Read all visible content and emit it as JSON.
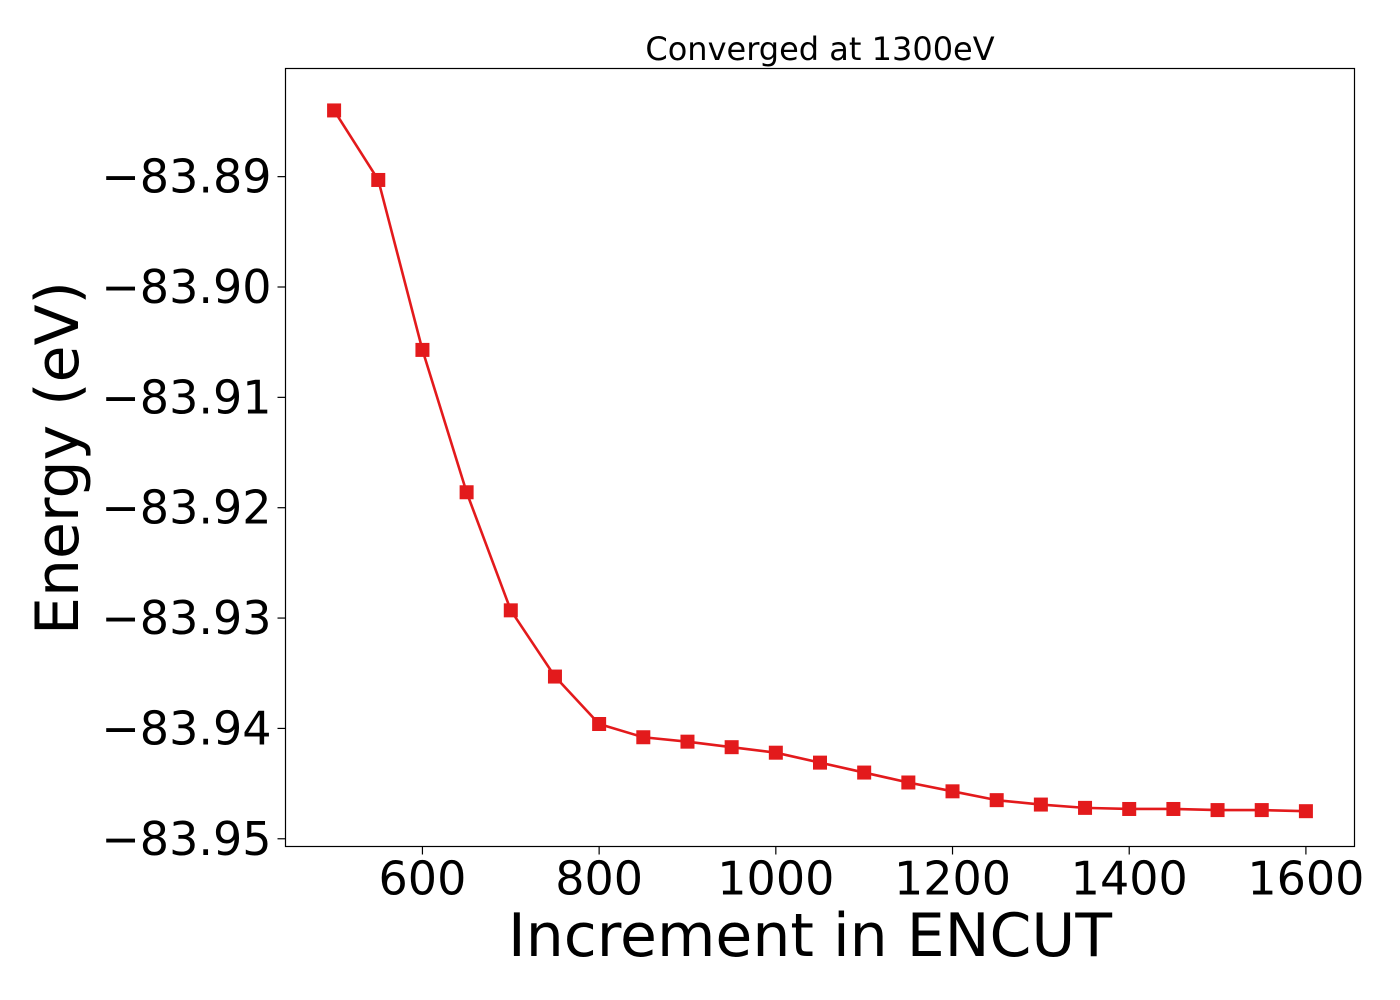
{
  "chart_data": {
    "type": "line",
    "title": "Converged at 1300eV",
    "xlabel": "Increment in ENCUT",
    "ylabel": "Energy (eV)",
    "xlim": [
      445,
      1655
    ],
    "ylim": [
      -83.9507,
      -83.8802
    ],
    "xticks": [
      600,
      800,
      1000,
      1200,
      1400,
      1600
    ],
    "xtick_labels": [
      "600",
      "800",
      "1000",
      "1200",
      "1400",
      "1600"
    ],
    "yticks": [
      -83.89,
      -83.9,
      -83.91,
      -83.92,
      -83.93,
      -83.94,
      -83.95
    ],
    "ytick_labels": [
      "−83.89",
      "−83.90",
      "−83.91",
      "−83.92",
      "−83.93",
      "−83.94",
      "−83.95"
    ],
    "grid": false,
    "legend": "none",
    "color": "#e31a1c",
    "marker": "square",
    "series": [
      {
        "x": [
          500,
          550,
          600,
          650,
          700,
          750,
          800,
          850,
          900,
          950,
          1000,
          1050,
          1100,
          1150,
          1200,
          1250,
          1300,
          1350,
          1400,
          1450,
          1500,
          1550,
          1600
        ],
        "values": [
          -83.884,
          -83.8903,
          -83.9057,
          -83.9186,
          -83.9293,
          -83.9353,
          -83.9396,
          -83.9408,
          -83.9412,
          -83.9417,
          -83.9422,
          -83.9431,
          -83.944,
          -83.9449,
          -83.9457,
          -83.9465,
          -83.9469,
          -83.9472,
          -83.9473,
          -83.9473,
          -83.9474,
          -83.9474,
          -83.9475
        ]
      }
    ]
  }
}
